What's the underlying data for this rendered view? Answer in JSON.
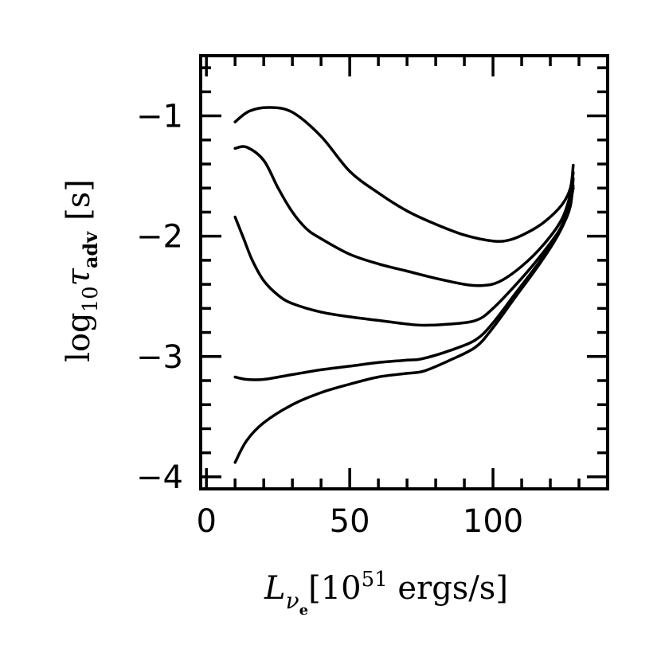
{
  "chart_data": {
    "type": "line",
    "title": "",
    "xlabel": {
      "symbol": "L",
      "subscript": "ν",
      "subsubscript": "e",
      "bracket_open": "[",
      "base": "10",
      "exponent": "51",
      "unit": " ergs/s",
      "bracket_close": "]"
    },
    "ylabel": {
      "prefix": "log",
      "prefix_sub": "10",
      "symbol": "τ",
      "symbol_sub": "adv",
      "unit": "[s]"
    },
    "xlim": [
      -2,
      140
    ],
    "ylim": [
      -4.1,
      -0.5
    ],
    "xticks_major": [
      0,
      50,
      100
    ],
    "xtick_labels": [
      "0",
      "50",
      "100"
    ],
    "xticks_minor": [
      10,
      20,
      30,
      40,
      60,
      70,
      80,
      90,
      110,
      120,
      130
    ],
    "yticks_major": [
      -4,
      -3,
      -2,
      -1
    ],
    "ytick_labels": [
      "−4",
      "−3",
      "−2",
      "−1"
    ],
    "yticks_minor": [
      -3.8,
      -3.6,
      -3.4,
      -3.2,
      -2.8,
      -2.6,
      -2.4,
      -2.2,
      -1.8,
      -1.6,
      -1.4,
      -1.2,
      -0.8,
      -0.6
    ],
    "grid": false,
    "legend": "none",
    "series": [
      {
        "x": [
          10,
          15,
          22,
          30,
          40,
          50,
          60,
          70,
          80,
          90,
          100,
          106,
          112,
          118,
          124,
          127,
          128
        ],
        "y": [
          -1.05,
          -0.96,
          -0.93,
          -0.97,
          -1.17,
          -1.46,
          -1.64,
          -1.79,
          -1.9,
          -1.99,
          -2.04,
          -2.03,
          -1.97,
          -1.88,
          -1.74,
          -1.6,
          -1.41
        ]
      },
      {
        "x": [
          10,
          14,
          20,
          25,
          30,
          35,
          40,
          50,
          60,
          70,
          80,
          90,
          96,
          102,
          110,
          118,
          124,
          127,
          128
        ],
        "y": [
          -1.27,
          -1.26,
          -1.37,
          -1.6,
          -1.8,
          -1.94,
          -2.02,
          -2.15,
          -2.23,
          -2.29,
          -2.35,
          -2.4,
          -2.41,
          -2.38,
          -2.25,
          -2.06,
          -1.86,
          -1.65,
          -1.47
        ]
      },
      {
        "x": [
          10,
          13,
          16,
          20,
          25,
          30,
          40,
          50,
          60,
          70,
          76,
          85,
          94,
          100,
          110,
          118,
          124,
          127,
          128
        ],
        "y": [
          -1.84,
          -2.02,
          -2.2,
          -2.37,
          -2.49,
          -2.56,
          -2.63,
          -2.67,
          -2.7,
          -2.73,
          -2.74,
          -2.73,
          -2.7,
          -2.6,
          -2.35,
          -2.12,
          -1.92,
          -1.75,
          -1.52
        ]
      },
      {
        "x": [
          10,
          14,
          20,
          30,
          40,
          50,
          60,
          70,
          75,
          85,
          94,
          100,
          108,
          116,
          122,
          126,
          128
        ],
        "y": [
          -3.17,
          -3.19,
          -3.19,
          -3.15,
          -3.11,
          -3.08,
          -3.05,
          -3.03,
          -3.02,
          -2.95,
          -2.86,
          -2.72,
          -2.47,
          -2.22,
          -2.0,
          -1.8,
          -1.58
        ]
      },
      {
        "x": [
          10,
          14,
          20,
          30,
          40,
          50,
          60,
          70,
          76,
          85,
          94,
          100,
          108,
          116,
          122,
          126,
          128
        ],
        "y": [
          -3.88,
          -3.7,
          -3.55,
          -3.4,
          -3.3,
          -3.23,
          -3.17,
          -3.14,
          -3.12,
          -3.03,
          -2.92,
          -2.76,
          -2.5,
          -2.24,
          -2.02,
          -1.82,
          -1.6
        ]
      }
    ]
  }
}
